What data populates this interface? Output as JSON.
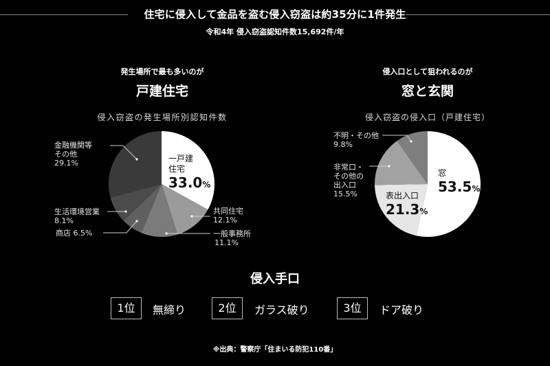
{
  "header": {
    "title": "住宅に侵入して金品を盗む侵入窃盗は約35分に1件発生",
    "subtitle": "令和4年 侵入窃盗認知件数15,692件/年"
  },
  "left_section": {
    "lead": "発生場所で最も多いのが",
    "headline": "戸建住宅",
    "caption": "侵入窃盗の発生場所別認知件数"
  },
  "right_section": {
    "lead": "侵入口として狙われるのが",
    "headline": "窓と玄関",
    "caption": "侵入窃盗の侵入口（戸建住宅）"
  },
  "chart_data": [
    {
      "type": "pie",
      "title": "侵入窃盗の発生場所別認知件数",
      "start": "12 o'clock, clockwise",
      "categories": [
        "一戸建住宅",
        "共同住宅",
        "一般事務所",
        "商店",
        "生活環境営業",
        "金融機関等その他"
      ],
      "values": [
        33.0,
        12.1,
        11.1,
        6.5,
        8.1,
        29.1
      ],
      "unit": "%",
      "colors": [
        "#ffffff",
        "#9b9b9b",
        "#7b7b7b",
        "#606060",
        "#4b4b4b",
        "#3a3a3a"
      ]
    },
    {
      "type": "pie",
      "title": "侵入窃盗の侵入口（戸建住宅）",
      "start": "12 o'clock, clockwise",
      "categories": [
        "窓",
        "表出入口",
        "非常口・その他の出入口",
        "不明・その他"
      ],
      "values": [
        53.5,
        21.3,
        15.5,
        9.8
      ],
      "unit": "%",
      "colors": [
        "#ffffff",
        "#e6e6e6",
        "#a2a2a2",
        "#7e7e7e"
      ]
    }
  ],
  "left_labels": {
    "detached_name1": "一戸建",
    "detached_name2": "住宅",
    "detached_value": "33.0",
    "pct": "%",
    "apartment_name": "共同住宅",
    "apartment_value": "12.1%",
    "office_name": "一般事務所",
    "office_value": "11.1%",
    "shop": "商店 6.5%",
    "service_name": "生活環境営業",
    "service_value": "8.1%",
    "other_name1": "金融機関等",
    "other_name2": "その他",
    "other_value": "29.1%"
  },
  "right_labels": {
    "window_name": "窓",
    "window_value": "53.5",
    "front_name": "表出入口",
    "front_value": "21.3",
    "pct": "%",
    "emergency_name1": "非常口・",
    "emergency_name2": "その他の",
    "emergency_name3": "出入口",
    "emergency_value": "15.5%",
    "unknown_name": "不明・その他",
    "unknown_value": "9.8%"
  },
  "methods": {
    "title": "侵入手口",
    "ranks": [
      {
        "rank": "1位",
        "label": "無締り"
      },
      {
        "rank": "2位",
        "label": "ガラス破り"
      },
      {
        "rank": "3位",
        "label": "ドア破り"
      }
    ]
  },
  "footer": {
    "source": "※出典：警察庁「住まいる防犯110番」"
  }
}
